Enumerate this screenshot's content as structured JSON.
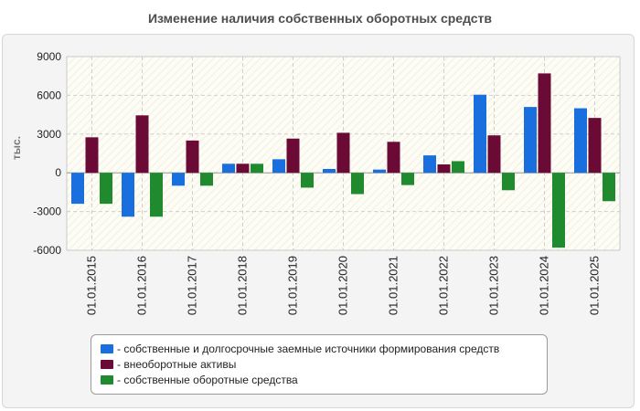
{
  "chart_data": {
    "type": "bar",
    "title": "Изменение наличия собственных оборотных средств",
    "ylabel": "тыс.",
    "xlabel": "",
    "ylim": [
      -6000,
      9000
    ],
    "yticks": [
      9000,
      6000,
      3000,
      0,
      -3000,
      -6000
    ],
    "yticklabels": [
      "9000",
      "6000",
      "3000",
      "0",
      "-3000",
      "-6000"
    ],
    "grid": true,
    "legend_position": "bottom",
    "categories": [
      "01.01.2015",
      "01.01.2016",
      "01.01.2017",
      "01.01.2018",
      "01.01.2019",
      "01.01.2020",
      "01.01.2021",
      "01.01.2022",
      "01.01.2023",
      "01.01.2024",
      "01.01.2025"
    ],
    "series": [
      {
        "name": "- собственные и долгосрочные заемные источники формирования средств",
        "color": "#1a6fdf",
        "values": [
          -2400,
          -3400,
          -1000,
          700,
          1050,
          300,
          250,
          1350,
          6050,
          5100,
          5000
        ]
      },
      {
        "name": "- внеоборотные активы",
        "color": "#6b0a35",
        "values": [
          2750,
          4450,
          2500,
          700,
          2650,
          3100,
          2400,
          650,
          2900,
          7700,
          4250
        ]
      },
      {
        "name": "- собственные оборотные средства",
        "color": "#1f8a2e",
        "values": [
          -2400,
          -3400,
          -1000,
          700,
          -1150,
          -1650,
          -950,
          900,
          -1350,
          -5800,
          -2200
        ]
      }
    ]
  }
}
